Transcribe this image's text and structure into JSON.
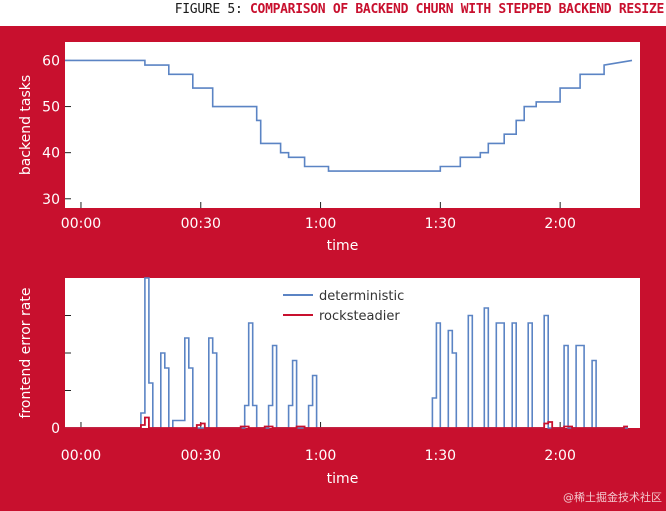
{
  "figure": {
    "label": "FIGURE 5:",
    "caption": "COMPARISON OF BACKEND CHURN WITH STEPPED BACKEND RESIZE"
  },
  "watermark": "@稀土掘金技术社区",
  "colors": {
    "background": "#c8102e",
    "plot_bg": "#ffffff",
    "deterministic": "#5b84c4",
    "rocksteadier": "#c8102e",
    "text": "#ffffff"
  },
  "chart_data": [
    {
      "type": "line",
      "title": "",
      "xlabel": "time",
      "ylabel": "backend tasks",
      "xlim": [
        -4,
        140
      ],
      "ylim": [
        28,
        64
      ],
      "x_ticks": [
        0,
        30,
        60,
        90,
        120
      ],
      "x_tick_labels": [
        "00:00",
        "00:30",
        "1:00",
        "1:30",
        "2:00"
      ],
      "y_ticks": [
        30,
        40,
        50,
        60
      ],
      "y_tick_labels": [
        "30",
        "40",
        "50",
        "60"
      ],
      "grid": false,
      "series": [
        {
          "x": [
            -4,
            16,
            16,
            22,
            22,
            28,
            28,
            33,
            33,
            44,
            44,
            45,
            45,
            50,
            50,
            52,
            52,
            56,
            56,
            62,
            62,
            90,
            90,
            95,
            95,
            100,
            100,
            102,
            102,
            106,
            106,
            109,
            109,
            111,
            111,
            114,
            114,
            120,
            120,
            125,
            125,
            131,
            131,
            138
          ],
          "y": [
            60,
            60,
            59,
            59,
            57,
            57,
            54,
            54,
            50,
            50,
            47,
            47,
            42,
            42,
            40,
            40,
            39,
            39,
            37,
            37,
            36,
            36,
            37,
            37,
            39,
            39,
            40,
            40,
            42,
            42,
            44,
            44,
            47,
            47,
            50,
            50,
            51,
            51,
            54,
            54,
            57,
            57,
            59,
            60
          ]
        }
      ]
    },
    {
      "type": "line",
      "title": "",
      "xlabel": "time",
      "ylabel": "frontend error rate",
      "xlim": [
        -4,
        140
      ],
      "ylim": [
        0,
        100
      ],
      "x_ticks": [
        0,
        30,
        60,
        90,
        120
      ],
      "x_tick_labels": [
        "00:00",
        "00:30",
        "1:00",
        "1:30",
        "2:00"
      ],
      "y_ticks": [
        0,
        25,
        50,
        75
      ],
      "y_tick_labels": [
        "0",
        "",
        "",
        ""
      ],
      "grid": false,
      "legend": {
        "position": "top-center"
      },
      "series": [
        {
          "name": "deterministic",
          "x": [
            -4,
            15,
            15,
            16,
            16,
            17,
            17,
            18,
            18,
            20,
            20,
            21,
            21,
            22,
            22,
            23,
            23,
            26,
            26,
            27,
            27,
            28,
            28,
            29,
            29,
            32,
            32,
            33,
            33,
            34,
            34,
            35,
            35,
            41,
            41,
            42,
            42,
            43,
            43,
            44,
            44,
            47,
            47,
            48,
            48,
            49,
            49,
            52,
            52,
            53,
            53,
            54,
            54,
            57,
            57,
            58,
            58,
            59,
            59,
            88,
            88,
            89,
            89,
            90,
            90,
            92,
            92,
            93,
            93,
            94,
            94,
            95,
            95,
            97,
            97,
            98,
            98,
            99,
            99,
            101,
            101,
            102,
            102,
            103,
            103,
            104,
            104,
            106,
            106,
            107,
            107,
            108,
            108,
            109,
            109,
            111,
            111,
            112,
            112,
            113,
            113,
            114,
            114,
            115,
            115,
            116,
            116,
            117,
            117,
            118,
            118,
            119,
            119,
            121,
            121,
            122,
            122,
            123,
            123,
            124,
            124,
            126,
            126,
            127,
            127,
            128,
            128,
            129,
            129,
            131,
            131,
            132,
            132,
            133,
            133,
            134,
            134,
            137
          ],
          "y": [
            0,
            0,
            10,
            10,
            100,
            100,
            30,
            30,
            0,
            0,
            50,
            50,
            40,
            40,
            0,
            0,
            5,
            5,
            60,
            60,
            40,
            40,
            0,
            0,
            0,
            0,
            60,
            60,
            50,
            50,
            0,
            0,
            0,
            0,
            15,
            15,
            70,
            70,
            15,
            15,
            0,
            0,
            15,
            15,
            55,
            55,
            0,
            0,
            15,
            15,
            45,
            45,
            0,
            0,
            15,
            15,
            35,
            35,
            0,
            0,
            20,
            20,
            70,
            70,
            0,
            0,
            65,
            65,
            50,
            50,
            0,
            0,
            0,
            0,
            75,
            75,
            0,
            0,
            0,
            0,
            80,
            80,
            0,
            0,
            0,
            0,
            70,
            70,
            0,
            0,
            0,
            0,
            70,
            70,
            0,
            0,
            0,
            0,
            70,
            70,
            0,
            0,
            0,
            0,
            0,
            0,
            75,
            75,
            0,
            0,
            0,
            0,
            0,
            0,
            55,
            55,
            0,
            0,
            0,
            0,
            55,
            55,
            0,
            0,
            0,
            0,
            45,
            45,
            0,
            0,
            0,
            0,
            0,
            0,
            0,
            0,
            0,
            0
          ]
        },
        {
          "name": "rocksteadier",
          "x": [
            -4,
            15,
            15,
            16,
            16,
            17,
            17,
            29,
            29,
            30,
            30,
            31,
            31,
            40,
            40,
            41,
            41,
            42,
            42,
            46,
            46,
            47,
            47,
            48,
            48,
            54,
            54,
            55,
            55,
            56,
            56,
            90,
            90,
            116,
            116,
            117,
            117,
            118,
            118,
            121,
            121,
            122,
            122,
            123,
            123,
            136,
            136,
            137
          ],
          "y": [
            0,
            0,
            2,
            2,
            7,
            7,
            0,
            0,
            2,
            2,
            3,
            3,
            0,
            0,
            1,
            1,
            1,
            1,
            0,
            0,
            1,
            1,
            1,
            1,
            0,
            0,
            1,
            1,
            1,
            1,
            0,
            0,
            0,
            0,
            3,
            3,
            4,
            4,
            0,
            0,
            1,
            1,
            1,
            1,
            0,
            0,
            1,
            1
          ]
        }
      ]
    }
  ]
}
